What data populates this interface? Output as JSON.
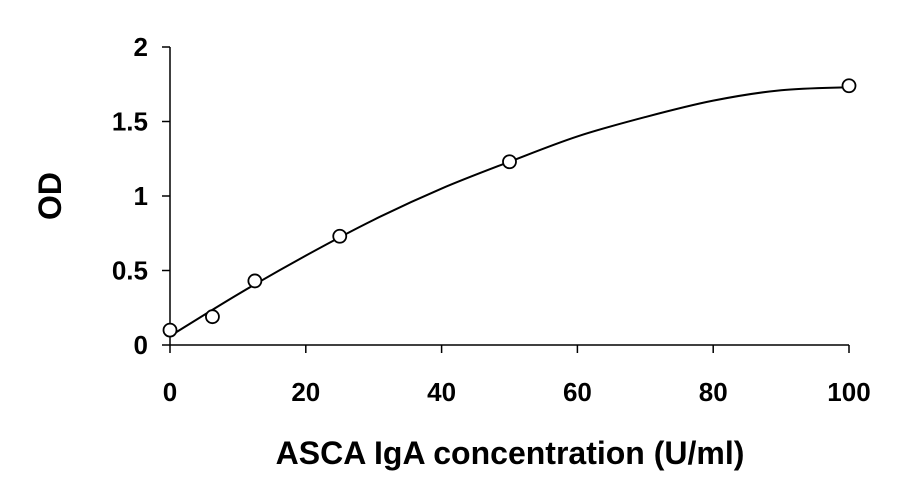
{
  "chart_data": {
    "type": "scatter",
    "title": "",
    "xlabel": "ASCA IgA concentration (U/ml)",
    "ylabel": "OD",
    "xlim": [
      0,
      100
    ],
    "ylim": [
      0,
      2
    ],
    "x_ticks": [
      0,
      20,
      40,
      60,
      80,
      100
    ],
    "y_ticks": [
      0,
      0.5,
      1,
      1.5,
      2
    ],
    "grid": false,
    "legend": "none",
    "series": [
      {
        "marker": "open-circle",
        "x": [
          0,
          6.25,
          12.5,
          25,
          50,
          100
        ],
        "y": [
          0.1,
          0.19,
          0.43,
          0.73,
          1.23,
          1.74
        ]
      }
    ],
    "trendline": {
      "type": "polynomial",
      "x": [
        0,
        10,
        20,
        30,
        40,
        50,
        60,
        70,
        80,
        90,
        100
      ],
      "y": [
        0.06,
        0.34,
        0.6,
        0.84,
        1.05,
        1.23,
        1.4,
        1.53,
        1.64,
        1.71,
        1.73
      ]
    },
    "colors": {
      "axis": "#000000",
      "marker": "#000000",
      "line": "#000000"
    }
  }
}
